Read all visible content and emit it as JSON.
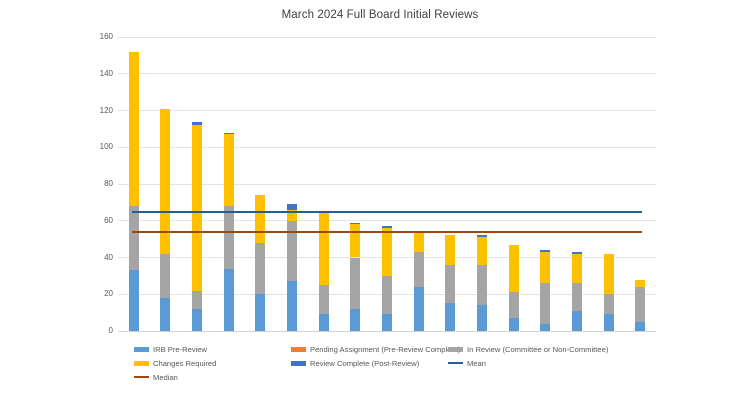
{
  "chart_data": {
    "type": "bar",
    "stacked": true,
    "title": "March 2024 Full Board Initial Reviews",
    "categories": [
      "",
      "",
      "",
      "",
      "",
      "",
      "",
      "",
      "",
      "",
      "",
      "",
      "",
      "",
      "",
      "",
      ""
    ],
    "series": [
      {
        "name": "IRB Pre-Review",
        "color": "#5B9BD5",
        "values": [
          33,
          18,
          12,
          34,
          20,
          27,
          9,
          12,
          9,
          24,
          15,
          14,
          7,
          4,
          11,
          9,
          5
        ]
      },
      {
        "name": "Pending Assignment (Pre-Review Complete)",
        "color": "#ED7D31",
        "values": [
          0,
          0,
          0,
          0,
          0,
          0,
          0,
          0,
          0,
          0,
          0,
          0,
          0,
          0,
          0,
          0,
          0
        ]
      },
      {
        "name": "In Review (Committee or Non-Committee)",
        "color": "#A5A5A5",
        "values": [
          35,
          24,
          10,
          34,
          28,
          33,
          16,
          28,
          21,
          19,
          21,
          22,
          14,
          22,
          15,
          11,
          19
        ]
      },
      {
        "name": "Changes Required",
        "color": "#FFC000",
        "values": [
          84,
          79,
          90,
          39,
          26,
          6,
          39,
          18,
          26,
          11,
          16,
          15,
          26,
          17,
          16,
          22,
          4
        ]
      },
      {
        "name": "Review Complete (Post-Review)",
        "color": "#4472C4",
        "values": [
          0,
          0,
          2,
          1,
          0,
          3,
          0,
          1,
          1,
          0,
          0,
          1,
          0,
          1,
          1,
          0,
          0
        ]
      }
    ],
    "ref_lines": [
      {
        "name": "Mean",
        "value": 65,
        "color": "#255E91"
      },
      {
        "name": "Median",
        "value": 54,
        "color": "#9E480E"
      }
    ],
    "ylim": [
      0,
      160
    ],
    "yticks": [
      0,
      20,
      40,
      60,
      80,
      100,
      120,
      140,
      160
    ],
    "grid": true,
    "xlabel": "",
    "ylabel": "",
    "legend_position": "bottom"
  }
}
